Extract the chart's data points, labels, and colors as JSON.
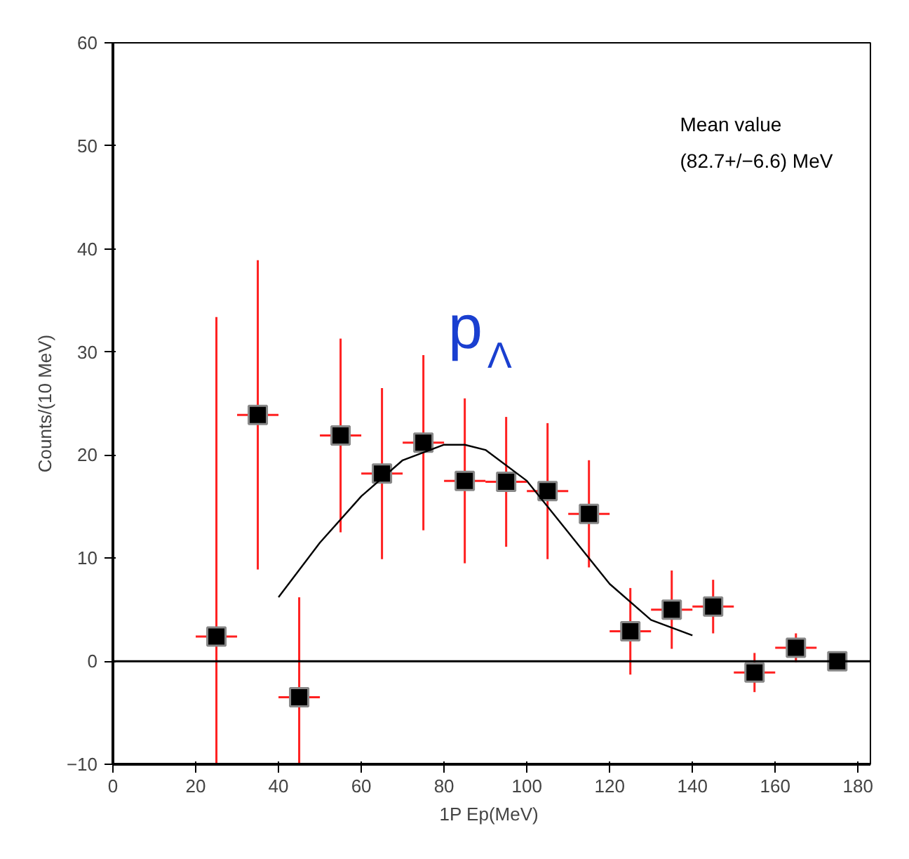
{
  "chart_data": {
    "type": "scatter",
    "xlabel": "1P  Ep(MeV)",
    "ylabel": "Counts/(10 MeV)",
    "annotations": [
      "Mean value",
      "(82.7+/−6.6) MeV",
      "p$_{Λ}$"
    ],
    "xlim": [
      0,
      183
    ],
    "xticks": [
      0,
      20,
      40,
      60,
      80,
      100,
      120,
      140,
      160,
      180
    ],
    "ylim": [
      -10,
      60
    ],
    "yticks": [
      -10,
      0,
      10,
      20,
      30,
      40,
      50,
      60
    ],
    "grid": false,
    "marker": "square",
    "ref_lines": [
      {
        "axis": "y",
        "value": 0,
        "color": "#000000"
      }
    ],
    "series": [
      {
        "color": "#000000",
        "x": [
          25,
          35,
          45,
          55,
          65,
          75,
          85,
          95,
          105,
          115,
          125,
          135,
          145,
          155,
          165,
          175
        ],
        "values": [
          2.4,
          23.9,
          -3.5,
          21.9,
          18.2,
          21.2,
          17.5,
          17.4,
          16.5,
          14.3,
          2.9,
          5.0,
          5.3,
          -1.1,
          1.3,
          0.0
        ],
        "errors": [
          [
            -10,
            33.4
          ],
          15,
          [
            -10,
            6.2
          ],
          9.4,
          8.3,
          8.5,
          8,
          6.3,
          6.6,
          5.2,
          4.2,
          3.8,
          2.6,
          1.9,
          1.4,
          null
        ],
        "xerrors": [
          5,
          5,
          5,
          5,
          5,
          5,
          5,
          5,
          5,
          5,
          5,
          5,
          5,
          5,
          5,
          null
        ]
      },
      {
        "type": "line",
        "color": "#000000",
        "marker": "none",
        "x": [
          40,
          50,
          60,
          70,
          80,
          85,
          90,
          100,
          110,
          120,
          130,
          140
        ],
        "values": [
          6.2,
          11.5,
          16,
          19.5,
          21,
          21,
          20.5,
          17.5,
          12.5,
          7.5,
          4,
          2.5
        ]
      }
    ]
  }
}
